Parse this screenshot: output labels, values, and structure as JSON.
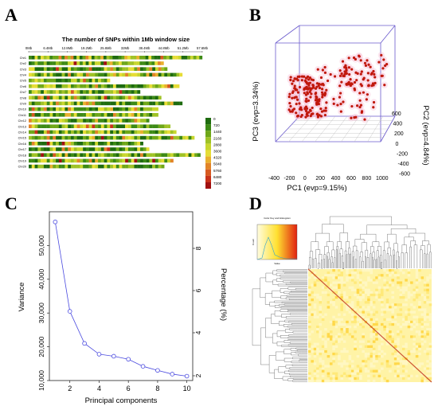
{
  "panels": {
    "a": {
      "letter": "A"
    },
    "b": {
      "letter": "B"
    },
    "c": {
      "letter": "C"
    },
    "d": {
      "letter": "D"
    }
  },
  "chart_data": [
    {
      "id": "A",
      "type": "heatmap",
      "title": "The number of SNPs within 1Mb window size",
      "x_ticks": [
        "0Mb",
        "6.4Mb",
        "12.8Mb",
        "19.2Mb",
        "25.6Mb",
        "32Mb",
        "38.4Mb",
        "44.8Mb",
        "51.2Mb",
        "57.6Mb"
      ],
      "chromosomes": [
        "Chr1",
        "Chr2",
        "Chr3",
        "Chr4",
        "Chr5",
        "Chr6",
        "Chr7",
        "Chr8",
        "Chr9",
        "Chr10",
        "Chr11",
        "Chr12",
        "Chr13",
        "Chr14",
        "Chr15",
        "Chr16",
        "Chr17",
        "Chr18",
        "Chr19",
        "Chr20"
      ],
      "chrom_lengths_mb": [
        57.6,
        44.8,
        46,
        51,
        27,
        50,
        37,
        44,
        51,
        43,
        43,
        40,
        47,
        49,
        55,
        38,
        40,
        57,
        48,
        45
      ],
      "legend_values": [
        "0",
        "720",
        "1440",
        "2160",
        "2880",
        "3600",
        "4320",
        "5040",
        "5760",
        "6480",
        "7200"
      ],
      "legend_colors": [
        "#1e6b0f",
        "#3d8a15",
        "#6ea718",
        "#9fc226",
        "#c8d62e",
        "#e6dd36",
        "#e9b02e",
        "#e28428",
        "#d75a20",
        "#c8321a",
        "#a11010"
      ]
    },
    {
      "id": "B",
      "type": "scatter",
      "xlabel": "PC1 (evp=9.15%)",
      "ylabel": "PC2 (evp=4.84%)",
      "zlabel": "PC3 (evp=3.34%)",
      "x_ticks": [
        "-400",
        "-200",
        "0",
        "200",
        "400",
        "600",
        "800",
        "1000"
      ],
      "y_ticks": [
        "-600",
        "-400",
        "-200",
        "0",
        "200",
        "400",
        "600"
      ],
      "point_color": "#c0180c",
      "box_color": "#6a5acd"
    },
    {
      "id": "C",
      "type": "line",
      "xlabel": "Principal components",
      "ylabel": "Variance",
      "y2label": "Percentage (%)",
      "x": [
        1,
        2,
        3,
        4,
        5,
        6,
        7,
        8,
        9,
        10
      ],
      "values": [
        57000,
        30500,
        21000,
        17800,
        17200,
        16300,
        14200,
        13000,
        11900,
        11300
      ],
      "xlim": [
        0.6,
        10.4
      ],
      "ylim": [
        10000,
        60000
      ],
      "x_ticks": [
        "2",
        "4",
        "6",
        "8",
        "10"
      ],
      "y_ticks": [
        "10,000",
        "20,000",
        "30,000",
        "40,000",
        "50,000"
      ],
      "y2_ticks": [
        "2",
        "4",
        "6",
        "8"
      ],
      "line_color": "#4a4adf"
    },
    {
      "id": "D",
      "type": "heatmap",
      "key_title": "Color Key and Histogram",
      "key_ylabel": "Count",
      "key_xlabel": "Value"
    }
  ]
}
